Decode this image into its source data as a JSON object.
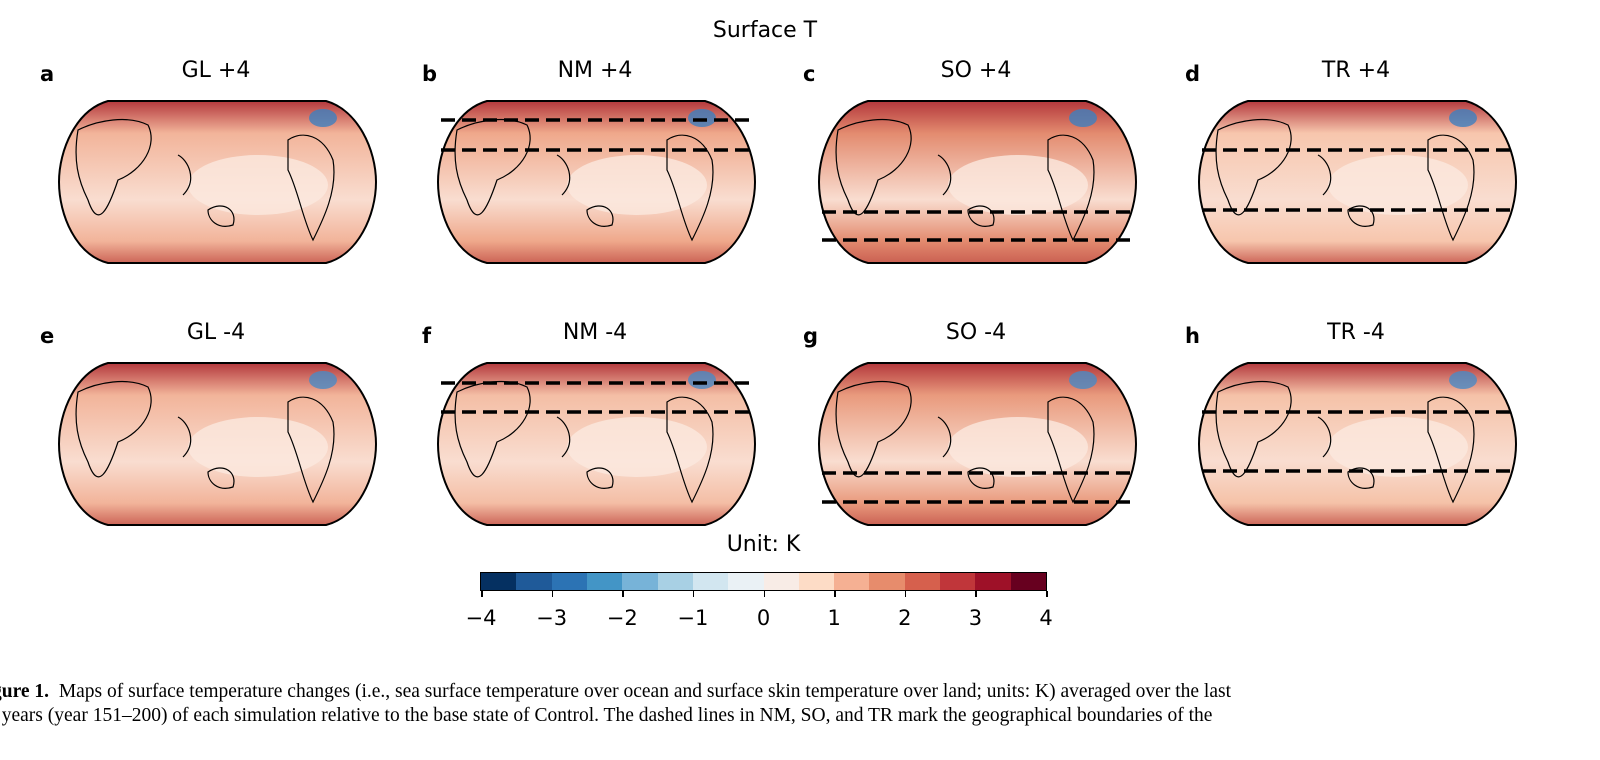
{
  "figure": {
    "suptitle": "Surface T",
    "panels": [
      {
        "label": "a",
        "title": "GL +4",
        "base": "#f2b49a",
        "dashed": false
      },
      {
        "label": "b",
        "title": "NM +4",
        "base": "#efa88b",
        "dashed": true
      },
      {
        "label": "c",
        "title": "SO +4",
        "base": "#e38b6f",
        "dashed": true
      },
      {
        "label": "d",
        "title": "TR +4",
        "base": "#f7c6ad",
        "dashed": true
      },
      {
        "label": "e",
        "title": "GL -4",
        "base": "#f2b49a",
        "dashed": false
      },
      {
        "label": "f",
        "title": "NM -4",
        "base": "#f4bea5",
        "dashed": true
      },
      {
        "label": "g",
        "title": "SO -4",
        "base": "#e99a7d",
        "dashed": true
      },
      {
        "label": "h",
        "title": "TR -4",
        "base": "#f5c2a8",
        "dashed": true
      }
    ],
    "colorbar": {
      "label": "Unit: K",
      "ticks": [
        "−4",
        "−3",
        "−2",
        "−1",
        "0",
        "1",
        "2",
        "3",
        "4"
      ],
      "range": [
        -4,
        4
      ],
      "colors": [
        "#053061",
        "#1f5a99",
        "#2c73b4",
        "#4395c6",
        "#77b3d8",
        "#a8d0e4",
        "#d2e6f0",
        "#eaf1f5",
        "#f8ece6",
        "#fddcc6",
        "#f5b093",
        "#e78c6c",
        "#d6604d",
        "#c0363a",
        "#9e1128",
        "#67001f"
      ]
    }
  },
  "caption": {
    "lead": "gure 1.",
    "line1": "Maps of surface temperature changes (i.e., sea surface temperature over ocean and surface skin temperature over land; units: K) averaged over the last",
    "line2": "years (year 151–200) of each simulation relative to the base state of Control. The dashed lines in NM, SO, and TR mark the geographical boundaries of the"
  }
}
